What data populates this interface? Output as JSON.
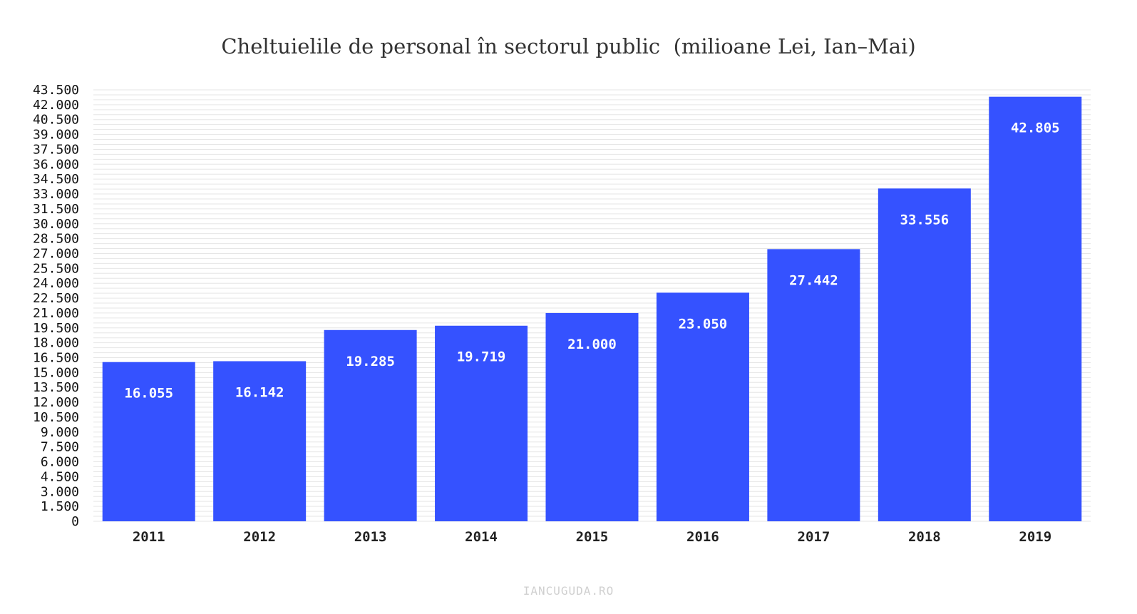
{
  "chart_data": {
    "type": "bar",
    "title": "Cheltuielile de personal în sectorul public  (milioane Lei, Ian–Mai)",
    "xlabel": "",
    "ylabel": "",
    "categories": [
      "2011",
      "2012",
      "2013",
      "2014",
      "2015",
      "2016",
      "2017",
      "2018",
      "2019"
    ],
    "values": [
      16055,
      16142,
      19285,
      19719,
      21000,
      23050,
      27442,
      33556,
      42805
    ],
    "value_labels": [
      "16.055",
      "16.142",
      "19.285",
      "19.719",
      "21.000",
      "23.050",
      "27.442",
      "33.556",
      "42.805"
    ],
    "ylim": [
      0,
      43500
    ],
    "yticks": [
      0,
      1500,
      3000,
      4500,
      6000,
      7500,
      9000,
      10500,
      12000,
      13500,
      15000,
      16500,
      18000,
      19500,
      21000,
      22500,
      24000,
      25500,
      27000,
      28500,
      30000,
      31500,
      33000,
      34500,
      36000,
      37500,
      39000,
      40500,
      42000,
      43500
    ],
    "ytick_labels": [
      "0",
      "1.500",
      "3.000",
      "4.500",
      "6.000",
      "7.500",
      "9.000",
      "10.500",
      "12.000",
      "13.500",
      "15.000",
      "16.500",
      "18.000",
      "19.500",
      "21.000",
      "22.500",
      "24.000",
      "25.500",
      "27.000",
      "28.500",
      "30.000",
      "31.500",
      "33.000",
      "34.500",
      "36.000",
      "37.500",
      "39.000",
      "40.500",
      "42.000",
      "43.500"
    ],
    "grid": true,
    "legend": "none",
    "bar_color": "#3552ff"
  },
  "credit": "IANCUGUDA.RO"
}
